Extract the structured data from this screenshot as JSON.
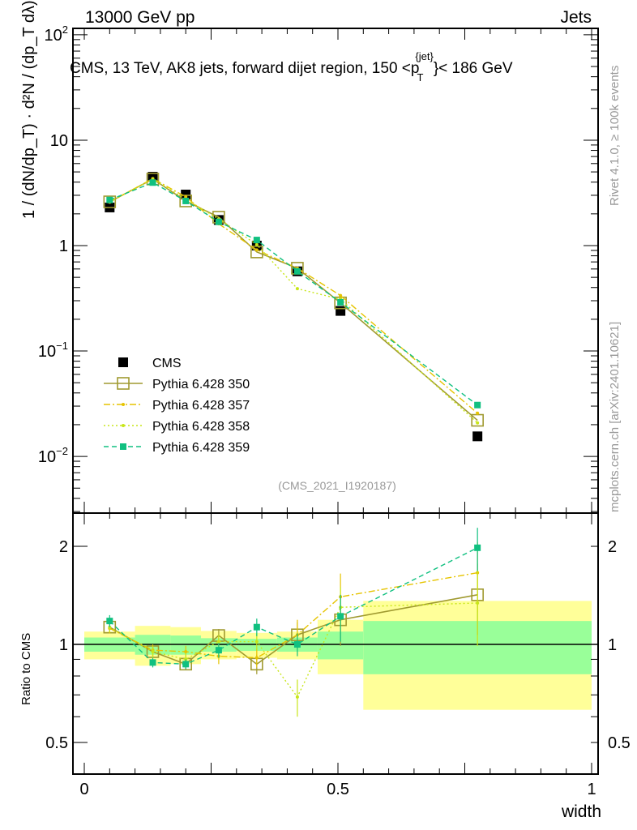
{
  "header": {
    "left": "13000 GeV pp",
    "right": "Jets"
  },
  "side": {
    "rivet": "Rivet 4.1.0, ≥ 100k events",
    "mcplots": "mcplots.cern.ch [arXiv:2401.10621]"
  },
  "colors": {
    "cms": "#000000",
    "p350": "#a09a30",
    "p357": "#e6c400",
    "p358": "#c8e619",
    "p359": "#10c080",
    "band_green": "#99ff99",
    "band_yellow": "#ffff99"
  },
  "chart_data": [
    {
      "type": "line",
      "title": "CMS, 13 TeV, AK8 jets, forward dijet region, 150 <p_T^{jet}< 186 GeV",
      "title_main": "CMS, 13 TeV, AK8 jets, forward dijet region, 150 <p",
      "title_sub": "T",
      "title_sup": "{jet}",
      "title_end": "}< 186 GeV",
      "ylabel": "1 / (dN/dp_T) · d²N / (dp_T dλ)",
      "xlabel": "width",
      "yscale": "log",
      "ylim": [
        0.0029,
        115
      ],
      "xlim": [
        -0.022,
        1.013
      ],
      "yticks": [
        {
          "v": 100,
          "l": "10",
          "e": "2"
        },
        {
          "v": 10,
          "l": "10",
          "e": ""
        },
        {
          "v": 1,
          "l": "1",
          "e": ""
        },
        {
          "v": 0.1,
          "l": "10",
          "e": "−1"
        },
        {
          "v": 0.01,
          "l": "10",
          "e": "−2"
        }
      ],
      "watermark": "(CMS_2021_I1920187)",
      "x": [
        0.05,
        0.135,
        0.2,
        0.265,
        0.34,
        0.42,
        0.505,
        0.775
      ],
      "series": [
        {
          "name": "CMS",
          "key": "cms",
          "style": "data",
          "values": [
            2.3,
            4.5,
            3.05,
            1.75,
            1.0,
            0.57,
            0.24,
            0.0155
          ]
        },
        {
          "name": "Pythia 6.428 350",
          "key": "p350",
          "style": "solid-open-square",
          "values": [
            2.6,
            4.28,
            2.65,
            1.86,
            0.87,
            0.61,
            0.286,
            0.022
          ]
        },
        {
          "name": "Pythia 6.428 357",
          "key": "p357",
          "style": "dashdot",
          "values": [
            2.58,
            4.32,
            2.9,
            1.61,
            0.91,
            0.61,
            0.336,
            0.0257
          ]
        },
        {
          "name": "Pythia 6.428 358",
          "key": "p358",
          "style": "dotted",
          "values": [
            2.6,
            4.28,
            2.75,
            1.79,
            1.02,
            0.39,
            0.31,
            0.0208
          ]
        },
        {
          "name": "Pythia 6.428 359",
          "key": "p359",
          "style": "dashed-square",
          "values": [
            2.71,
            3.96,
            2.65,
            1.68,
            1.13,
            0.57,
            0.29,
            0.0307
          ]
        }
      ]
    },
    {
      "type": "line",
      "ylabel": "Ratio to CMS",
      "xlabel": "width",
      "yscale": "log",
      "ylim": [
        0.4,
        2.53
      ],
      "xlim": [
        -0.022,
        1.013
      ],
      "xticks": [
        {
          "v": 0,
          "l": "0"
        },
        {
          "v": 0.5,
          "l": "0.5"
        },
        {
          "v": 1,
          "l": "1"
        }
      ],
      "yticks": [
        {
          "v": 2,
          "l": "2"
        },
        {
          "v": 1,
          "l": "1"
        },
        {
          "v": 0.5,
          "l": "0.5"
        }
      ],
      "bin_edges": [
        0,
        0.1,
        0.17,
        0.23,
        0.3,
        0.38,
        0.46,
        0.55,
        1.0
      ],
      "band_green": [
        [
          0.95,
          1.05
        ],
        [
          0.93,
          1.07
        ],
        [
          0.93,
          1.065
        ],
        [
          0.95,
          1.045
        ],
        [
          0.955,
          1.04
        ],
        [
          0.95,
          1.05
        ],
        [
          0.9,
          1.095
        ],
        [
          0.81,
          1.18
        ]
      ],
      "band_yellow": [
        [
          0.9,
          1.095
        ],
        [
          0.86,
          1.14
        ],
        [
          0.87,
          1.13
        ],
        [
          0.9,
          1.1
        ],
        [
          0.91,
          1.085
        ],
        [
          0.9,
          1.095
        ],
        [
          0.81,
          1.19
        ],
        [
          0.63,
          1.36
        ]
      ],
      "x": [
        0.05,
        0.135,
        0.2,
        0.265,
        0.34,
        0.42,
        0.505,
        0.775
      ],
      "series": [
        {
          "name": "Pythia 6.428 350",
          "key": "p350",
          "style": "solid-open-square",
          "values": [
            1.13,
            0.95,
            0.87,
            1.065,
            0.87,
            1.07,
            1.19,
            1.42
          ],
          "err": [
            0.04,
            0.04,
            0.03,
            0.05,
            0.06,
            0.1,
            0.2,
            0.35
          ]
        },
        {
          "name": "Pythia 6.428 357",
          "key": "p357",
          "style": "dashdot",
          "values": [
            1.12,
            0.96,
            0.95,
            0.92,
            0.91,
            1.07,
            1.4,
            1.66
          ],
          "err": [
            0.04,
            0.04,
            0.04,
            0.05,
            0.06,
            0.12,
            0.25,
            0.4
          ]
        },
        {
          "name": "Pythia 6.428 358",
          "key": "p358",
          "style": "dotted",
          "values": [
            1.13,
            0.95,
            0.9,
            1.02,
            1.02,
            0.69,
            1.3,
            1.34
          ],
          "err": [
            0.04,
            0.04,
            0.04,
            0.05,
            0.06,
            0.09,
            0.2,
            0.35
          ]
        },
        {
          "name": "Pythia 6.428 359",
          "key": "p359",
          "style": "dashed-square",
          "values": [
            1.18,
            0.88,
            0.87,
            0.96,
            1.13,
            1.0,
            1.22,
            1.98
          ],
          "err": [
            0.05,
            0.03,
            0.03,
            0.05,
            0.07,
            0.08,
            0.2,
            0.3
          ]
        }
      ]
    }
  ]
}
